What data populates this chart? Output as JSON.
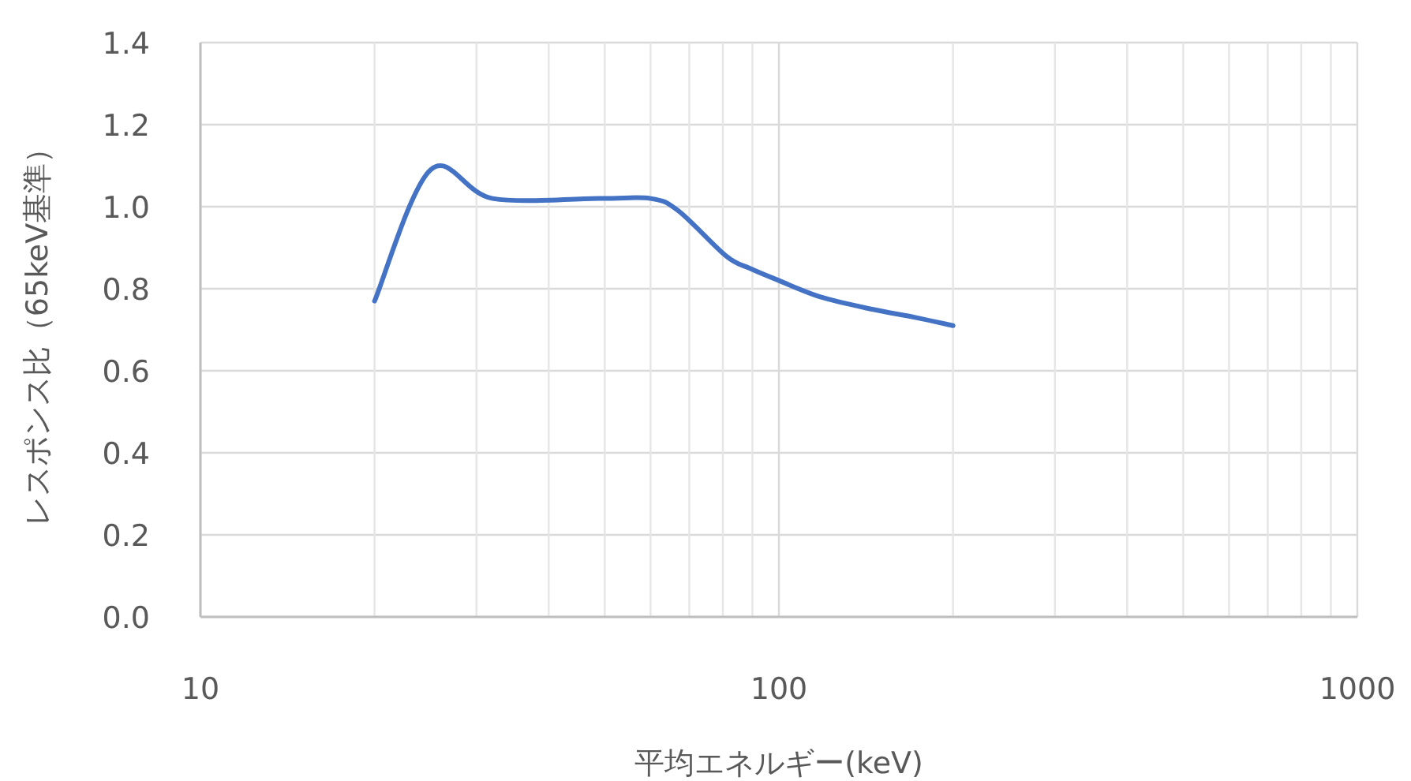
{
  "chart_data": {
    "type": "line",
    "xlabel": "平均エネルギー(keV)",
    "ylabel": "レスポンス比（65keV基準）",
    "log": "x",
    "grid": true,
    "marker": "none",
    "line_style": "solid",
    "xlim": [
      10,
      1000
    ],
    "ylim": [
      0,
      1.4
    ],
    "xticks": [
      10,
      {
        "value": 20,
        "label": null
      },
      {
        "value": 30,
        "label": null
      },
      {
        "value": 40,
        "label": null
      },
      {
        "value": 50,
        "label": null
      },
      {
        "value": 60,
        "label": null
      },
      {
        "value": 70,
        "label": null
      },
      {
        "value": 80,
        "label": null
      },
      {
        "value": 90,
        "label": null
      },
      100,
      {
        "value": 200,
        "label": null
      },
      {
        "value": 300,
        "label": null
      },
      {
        "value": 400,
        "label": null
      },
      {
        "value": 500,
        "label": null
      },
      {
        "value": 600,
        "label": null
      },
      {
        "value": 700,
        "label": null
      },
      {
        "value": 800,
        "label": null
      },
      {
        "value": 900,
        "label": null
      },
      1000
    ],
    "yticks": [
      {
        "value": 0,
        "label": "0.0"
      },
      0.2,
      0.4,
      0.6,
      0.8,
      {
        "value": 1,
        "label": "1.0"
      },
      1.2,
      1.4
    ],
    "series": [
      {
        "color": "#4472c4",
        "x": [
          20,
          25,
          32,
          49,
          60,
          67,
          81,
          89,
          100,
          118,
          145,
          172,
          200
        ],
        "values": [
          0.77,
          1.09,
          1.02,
          1.02,
          1.02,
          0.99,
          0.88,
          0.85,
          0.82,
          0.78,
          0.75,
          0.73,
          0.71
        ]
      }
    ]
  }
}
